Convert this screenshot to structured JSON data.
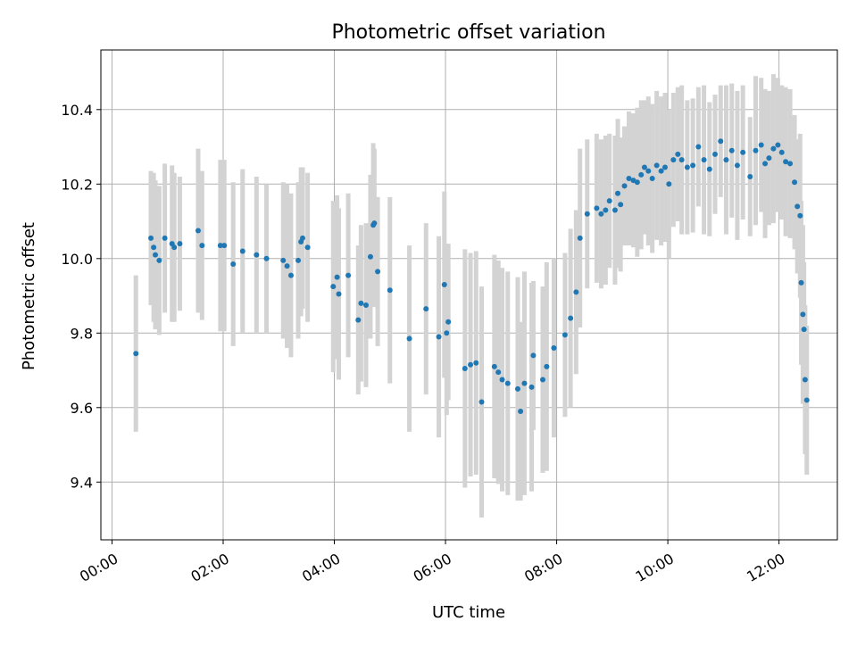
{
  "chart_data": {
    "type": "scatter",
    "title": "Photometric offset variation",
    "xlabel": "UTC time",
    "ylabel": "Photometric offset",
    "x_unit": "hours UTC",
    "xlim": [
      -0.2,
      13.05
    ],
    "ylim": [
      9.245,
      10.56
    ],
    "x_ticks": [
      {
        "value": 0,
        "label": "00:00"
      },
      {
        "value": 2,
        "label": "02:00"
      },
      {
        "value": 4,
        "label": "04:00"
      },
      {
        "value": 6,
        "label": "06:00"
      },
      {
        "value": 8,
        "label": "08:00"
      },
      {
        "value": 10,
        "label": "10:00"
      },
      {
        "value": 12,
        "label": "12:00"
      }
    ],
    "y_ticks": [
      9.4,
      9.6,
      9.8,
      10.0,
      10.2,
      10.4
    ],
    "grid": true,
    "colors": {
      "marker": "#1f77b4",
      "errorbar": "#d3d3d3",
      "grid": "#b0b0b0",
      "axis": "#000000"
    },
    "series": [
      {
        "x": [
          0.43,
          0.7,
          0.75,
          0.78,
          0.85,
          0.95,
          1.08,
          1.12,
          1.22,
          1.55,
          1.62,
          1.95,
          2.02,
          2.18,
          2.35,
          2.6,
          2.78,
          3.08,
          3.15,
          3.22,
          3.35,
          3.4,
          3.43,
          3.52,
          3.98,
          4.05,
          4.08,
          4.25,
          4.43,
          4.48,
          4.57,
          4.65,
          4.7,
          4.72,
          4.78,
          5.0,
          5.35,
          5.65,
          5.88,
          5.98,
          6.02,
          6.05,
          6.35,
          6.45,
          6.55,
          6.65,
          6.88,
          6.95,
          7.02,
          7.12,
          7.3,
          7.35,
          7.42,
          7.55,
          7.58,
          7.75,
          7.82,
          7.95,
          8.15,
          8.25,
          8.35,
          8.42,
          8.55,
          8.72,
          8.8,
          8.88,
          8.95,
          9.05,
          9.1,
          9.15,
          9.22,
          9.3,
          9.38,
          9.45,
          9.52,
          9.58,
          9.65,
          9.72,
          9.8,
          9.88,
          9.95,
          10.02,
          10.1,
          10.18,
          10.25,
          10.35,
          10.45,
          10.55,
          10.65,
          10.75,
          10.85,
          10.95,
          11.05,
          11.15,
          11.25,
          11.35,
          11.48,
          11.58,
          11.68,
          11.75,
          11.82,
          11.9,
          11.98,
          12.05,
          12.12,
          12.2,
          12.28,
          12.33,
          12.38,
          12.4,
          12.43,
          12.45,
          12.47,
          12.5
        ],
        "y": [
          9.745,
          10.055,
          10.03,
          10.01,
          9.995,
          10.055,
          10.04,
          10.03,
          10.04,
          10.075,
          10.035,
          10.035,
          10.035,
          9.985,
          10.02,
          10.01,
          10.0,
          9.995,
          9.98,
          9.955,
          9.995,
          10.045,
          10.055,
          10.03,
          9.925,
          9.95,
          9.905,
          9.955,
          9.835,
          9.88,
          9.875,
          10.005,
          10.09,
          10.095,
          9.965,
          9.915,
          9.785,
          9.865,
          9.79,
          9.93,
          9.8,
          9.83,
          9.705,
          9.715,
          9.72,
          9.615,
          9.71,
          9.695,
          9.675,
          9.665,
          9.65,
          9.59,
          9.665,
          9.655,
          9.74,
          9.675,
          9.71,
          9.76,
          9.795,
          9.84,
          9.91,
          10.055,
          10.12,
          10.135,
          10.12,
          10.13,
          10.155,
          10.13,
          10.175,
          10.145,
          10.195,
          10.215,
          10.21,
          10.205,
          10.225,
          10.245,
          10.235,
          10.215,
          10.25,
          10.235,
          10.245,
          10.2,
          10.265,
          10.28,
          10.265,
          10.245,
          10.25,
          10.3,
          10.265,
          10.24,
          10.28,
          10.315,
          10.265,
          10.29,
          10.25,
          10.285,
          10.22,
          10.29,
          10.305,
          10.255,
          10.27,
          10.295,
          10.305,
          10.285,
          10.26,
          10.255,
          10.205,
          10.14,
          10.115,
          9.935,
          9.85,
          9.81,
          9.675,
          9.62
        ],
        "err": [
          0.21,
          0.18,
          0.2,
          0.2,
          0.2,
          0.2,
          0.21,
          0.2,
          0.18,
          0.22,
          0.2,
          0.23,
          0.23,
          0.22,
          0.22,
          0.21,
          0.2,
          0.21,
          0.22,
          0.22,
          0.21,
          0.2,
          0.19,
          0.2,
          0.23,
          0.22,
          0.23,
          0.22,
          0.2,
          0.21,
          0.22,
          0.22,
          0.22,
          0.2,
          0.2,
          0.25,
          0.25,
          0.23,
          0.27,
          0.25,
          0.22,
          0.21,
          0.32,
          0.3,
          0.3,
          0.31,
          0.3,
          0.3,
          0.3,
          0.3,
          0.3,
          0.24,
          0.3,
          0.28,
          0.2,
          0.25,
          0.28,
          0.24,
          0.22,
          0.24,
          0.22,
          0.24,
          0.2,
          0.2,
          0.2,
          0.2,
          0.18,
          0.2,
          0.2,
          0.18,
          0.16,
          0.18,
          0.18,
          0.2,
          0.2,
          0.18,
          0.2,
          0.2,
          0.2,
          0.2,
          0.2,
          0.2,
          0.18,
          0.18,
          0.2,
          0.18,
          0.18,
          0.16,
          0.2,
          0.18,
          0.16,
          0.15,
          0.2,
          0.18,
          0.2,
          0.18,
          0.16,
          0.2,
          0.18,
          0.2,
          0.18,
          0.2,
          0.18,
          0.18,
          0.2,
          0.2,
          0.18,
          0.18,
          0.22,
          0.22,
          0.24,
          0.18,
          0.2,
          0.2
        ]
      }
    ]
  }
}
